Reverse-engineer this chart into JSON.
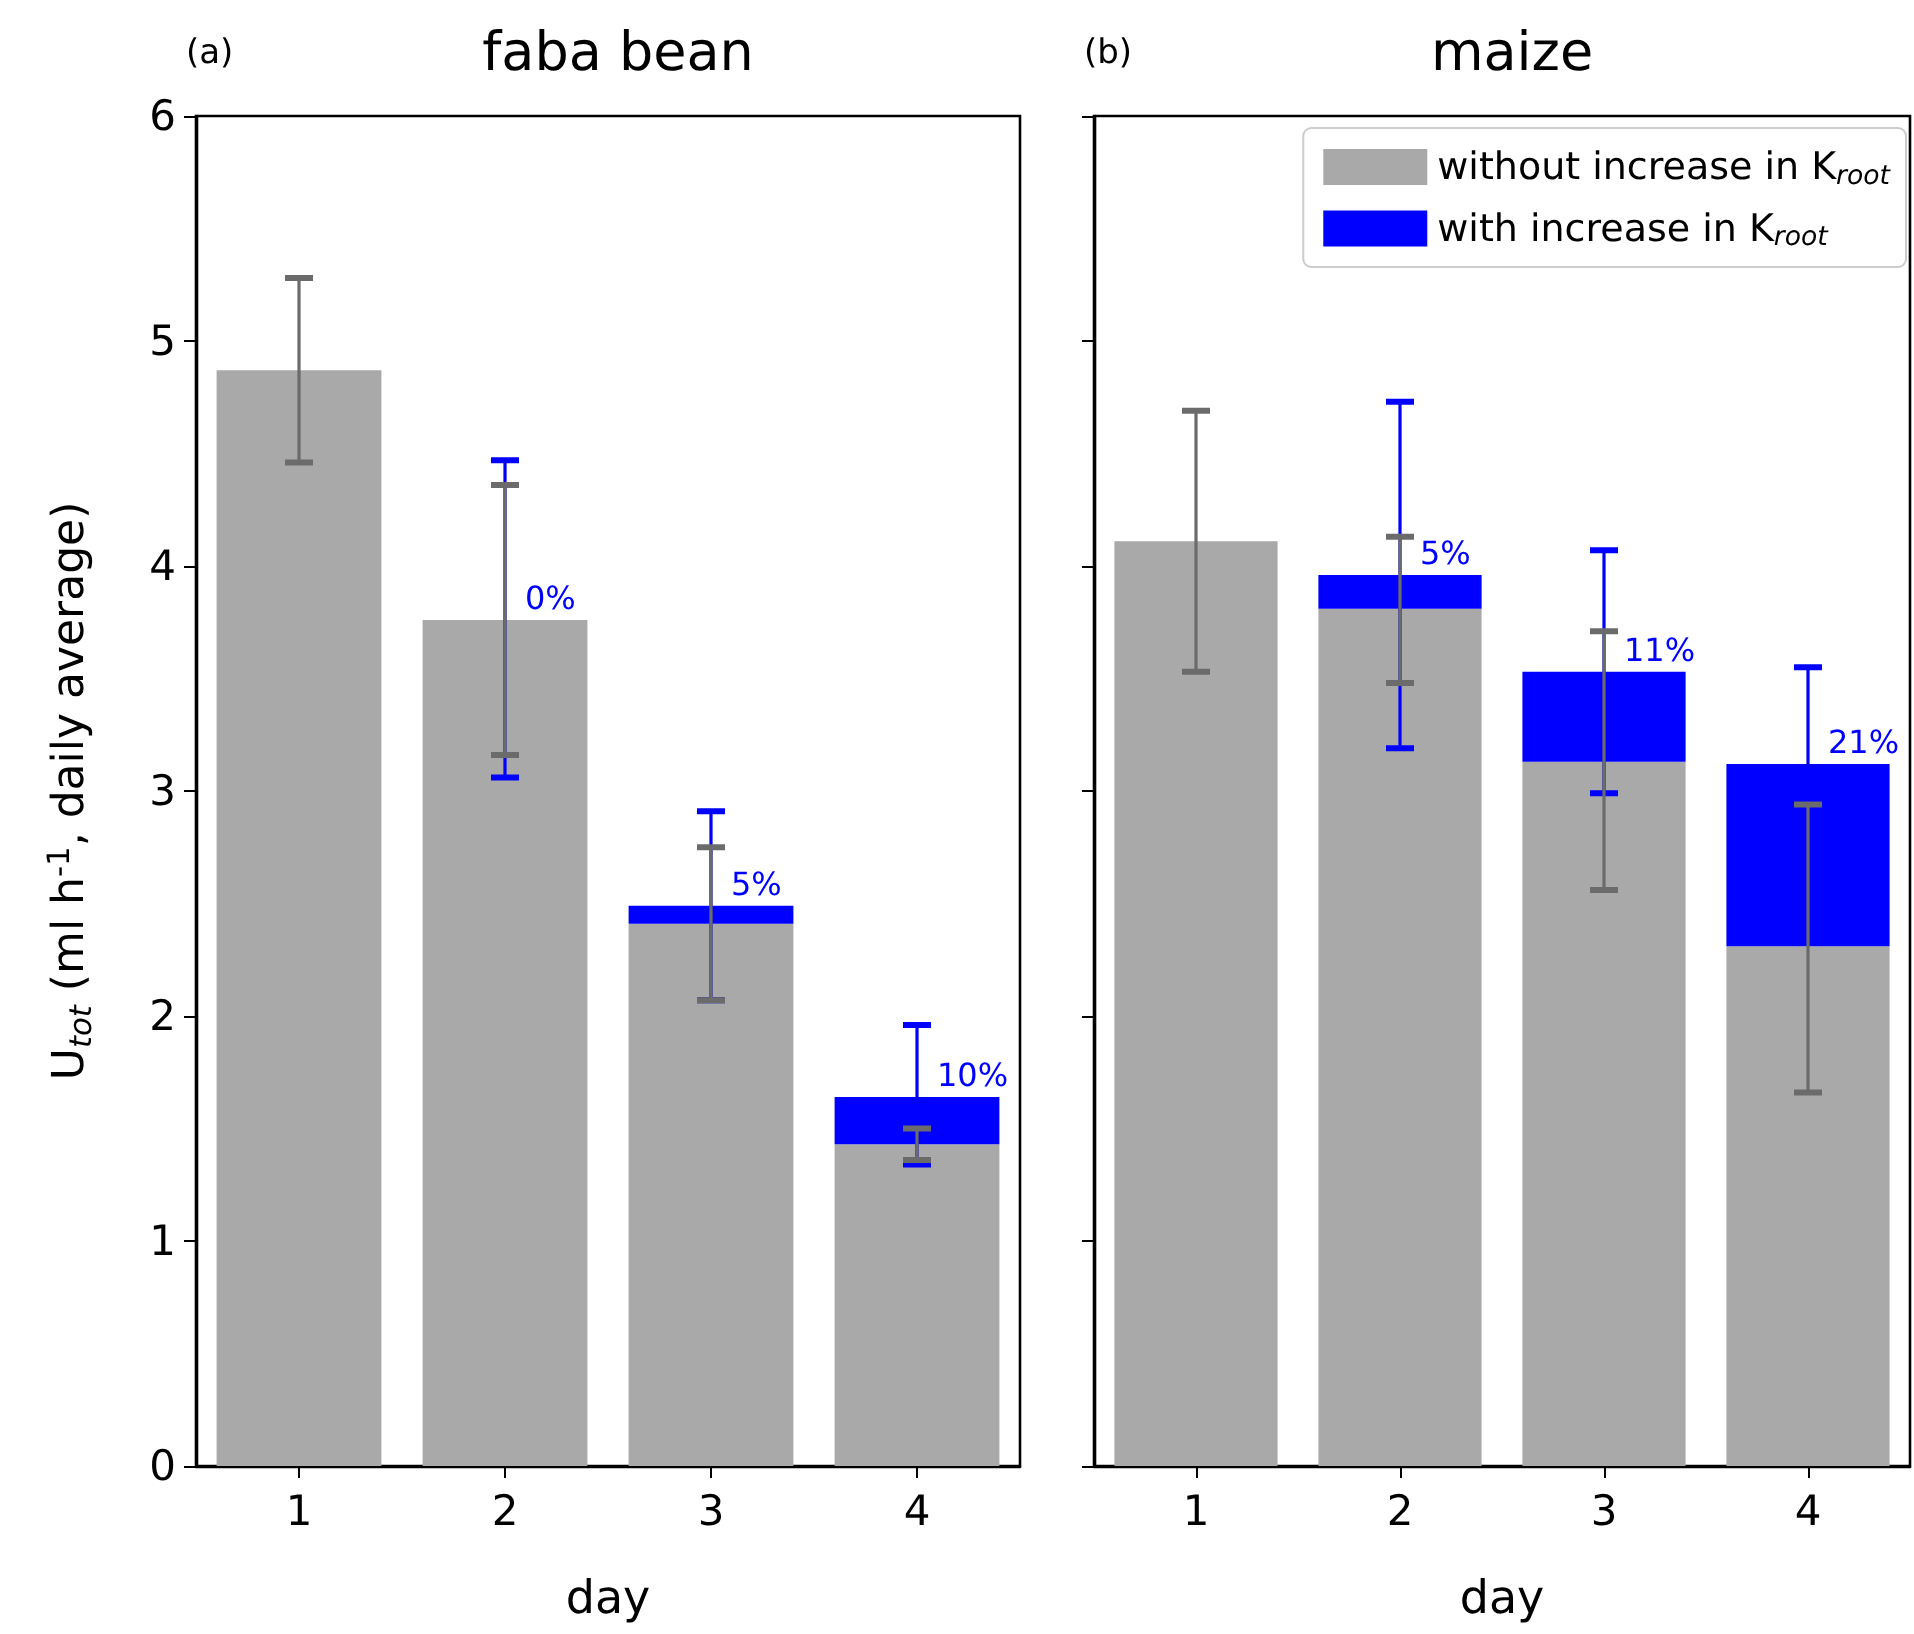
{
  "chart_data": [
    {
      "type": "bar",
      "title": "faba bean",
      "xlabel": "day",
      "ylabel": "U$_{tot}$ (ml h$^{-1}$, daily average)",
      "annotations": [
        "(a)",
        {
          "text": "0%",
          "x": "2",
          "y": 3.76
        },
        {
          "text": "5%",
          "x": "3",
          "y": 2.49
        },
        {
          "text": "10%",
          "x": "4",
          "y": 1.64
        }
      ],
      "categories": [
        "1",
        "2",
        "3",
        "4"
      ],
      "stacked": true,
      "ylim": [
        0,
        6
      ],
      "yticks": [
        0,
        1,
        2,
        3,
        4,
        5,
        6
      ],
      "grid": false,
      "legend": false,
      "series": [
        {
          "color": "#a9a9a9",
          "values": [
            4.87,
            3.76,
            2.41,
            1.43
          ],
          "errors": [
            [
              4.46,
              5.28
            ],
            [
              3.16,
              4.36
            ],
            [
              2.07,
              2.75
            ],
            [
              1.36,
              1.5
            ]
          ]
        },
        {
          "color": "#0000ff",
          "values": [
            null,
            0,
            0.08,
            0.21
          ],
          "errors": [
            null,
            [
              3.06,
              4.47
            ],
            [
              2.07,
              2.91
            ],
            [
              1.34,
              1.96
            ]
          ]
        }
      ]
    },
    {
      "type": "bar",
      "title": "maize",
      "xlabel": "day",
      "annotations": [
        "(b)",
        {
          "text": "5%",
          "x": "2",
          "y": 3.96
        },
        {
          "text": "11%",
          "x": "3",
          "y": 3.53
        },
        {
          "text": "21%",
          "x": "4",
          "y": 3.12
        }
      ],
      "categories": [
        "1",
        "2",
        "3",
        "4"
      ],
      "stacked": true,
      "ylim": [
        0,
        6
      ],
      "yticks": [
        0,
        1,
        2,
        3,
        4,
        5,
        6
      ],
      "grid": false,
      "legend": "top right",
      "tick_labels": "x",
      "series": [
        {
          "name": "without increase in K$_{root}$",
          "color": "#a9a9a9",
          "values": [
            4.11,
            3.81,
            3.13,
            2.31
          ],
          "errors": [
            [
              3.53,
              4.69
            ],
            [
              3.48,
              4.13
            ],
            [
              2.56,
              3.71
            ],
            [
              1.66,
              2.94
            ]
          ]
        },
        {
          "name": "with increase in K$_{root}$",
          "color": "#0000ff",
          "values": [
            null,
            0.15,
            0.4,
            0.81
          ],
          "errors": [
            null,
            [
              3.19,
              4.73
            ],
            [
              2.99,
              4.07
            ],
            [
              2.69,
              3.55
            ]
          ]
        }
      ]
    }
  ]
}
